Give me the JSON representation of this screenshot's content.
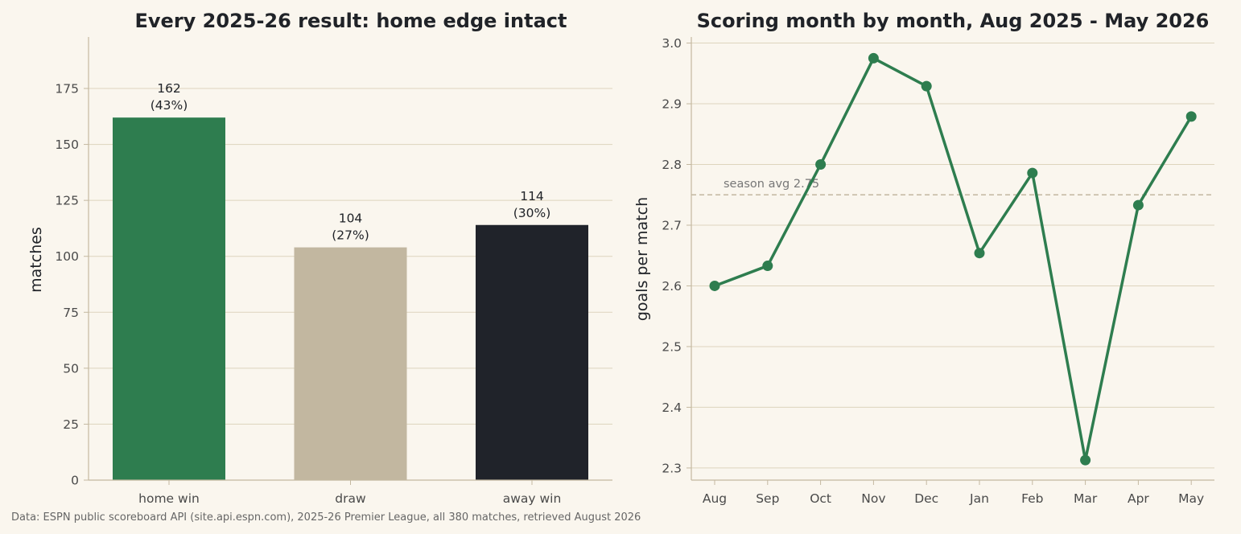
{
  "footer": "Data: ESPN public scoreboard API (site.api.espn.com), 2025-26 Premier League, all 380 matches, retrieved August 2026",
  "colors": {
    "background": "#faf6ee",
    "grid": "#ddd4bd",
    "spine": "#c4b8a0",
    "home_win": "#2e7d4f",
    "draw": "#c2b7a0",
    "away_win": "#20232a",
    "line": "#2e7d4f",
    "avg_line": "#c2b7a0"
  },
  "chart_data": [
    {
      "type": "bar",
      "title": "Every 2025-26 result: home edge intact",
      "xlabel": "",
      "ylabel": "matches",
      "categories": [
        "home win",
        "draw",
        "away win"
      ],
      "values": [
        162,
        104,
        114
      ],
      "value_labels": [
        "162",
        "104",
        "114"
      ],
      "percent_labels": [
        "(43%)",
        "(27%)",
        "(30%)"
      ],
      "bar_colors": [
        "#2e7d4f",
        "#c2b7a0",
        "#20232a"
      ],
      "ylim": [
        0,
        198
      ],
      "yticks": [
        0,
        25,
        50,
        75,
        100,
        125,
        150,
        175
      ],
      "grid": "horizontal",
      "legend": "none"
    },
    {
      "type": "line",
      "title": "Scoring month by month, Aug 2025 - May 2026",
      "xlabel": "",
      "ylabel": "goals per match",
      "x": [
        "Aug",
        "Sep",
        "Oct",
        "Nov",
        "Dec",
        "Jan",
        "Feb",
        "Mar",
        "Apr",
        "May"
      ],
      "series": [
        {
          "values": [
            2.6,
            2.633,
            2.8,
            2.975,
            2.929,
            2.654,
            2.786,
            2.313,
            2.733,
            2.879
          ]
        }
      ],
      "reference_line": {
        "value": 2.75,
        "label": "season avg 2.75",
        "style": "dashed"
      },
      "ylim": [
        2.28,
        3.01
      ],
      "yticks": [
        "2.3",
        "2.4",
        "2.5",
        "2.6",
        "2.7",
        "2.8",
        "2.9",
        "3.0"
      ],
      "grid": "horizontal",
      "legend": "none"
    }
  ]
}
